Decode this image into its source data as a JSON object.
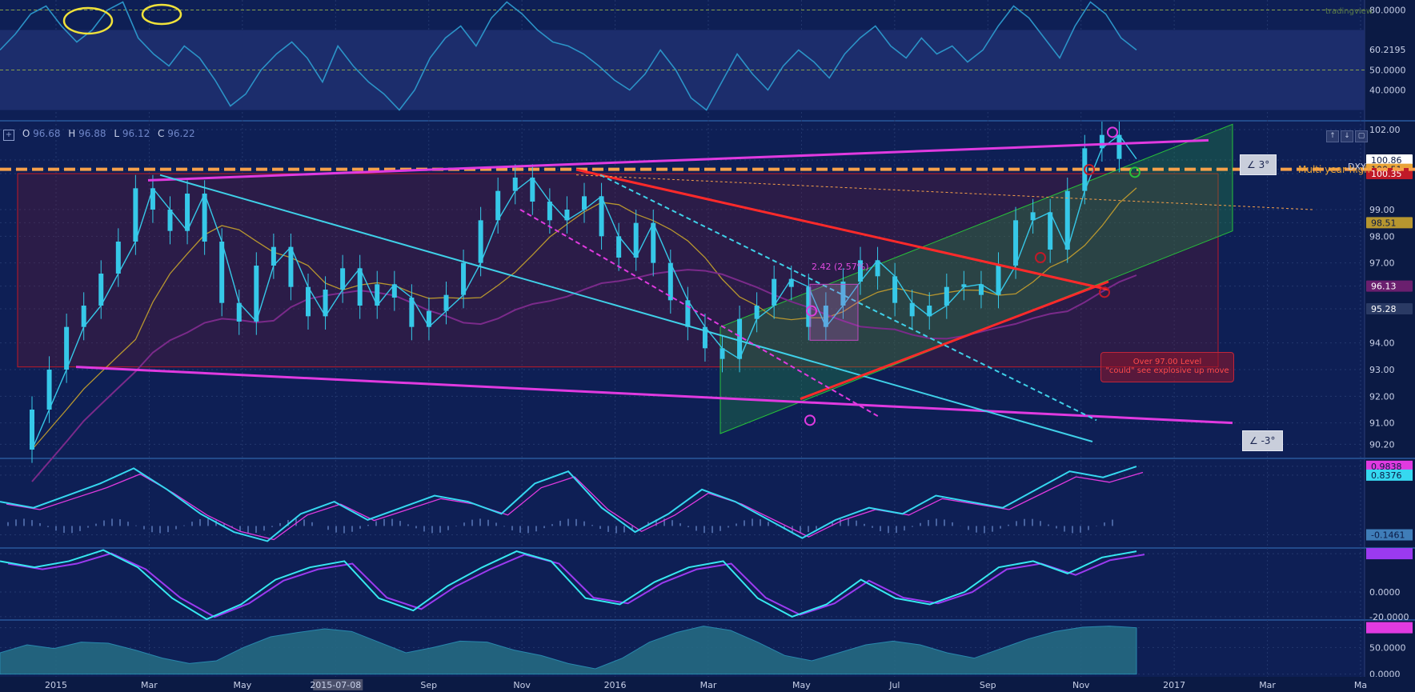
{
  "ohlc": {
    "o_label": "O",
    "o": "96.68",
    "h_label": "H",
    "h": "96.88",
    "l_label": "L",
    "l": "96.12",
    "c_label": "C",
    "c": "96.22"
  },
  "brand": "tradingview",
  "annotations": {
    "multi_year": "Multi year high",
    "note_line1": "Over 97.00 Level",
    "note_line2": "\"could\" see explosive up move",
    "measure": "2.42 (2.57%)",
    "angle_up": "∠ 3°",
    "angle_down": "∠ -3°",
    "symbol": "DXY"
  },
  "chart_data": [
    {
      "type": "line",
      "title": "RSI",
      "ylim": [
        25,
        85
      ],
      "tick_labels": [
        "80.0000",
        "60.2195",
        "50.0000",
        "40.0000"
      ],
      "tick_values": [
        80,
        60.2195,
        50,
        40
      ],
      "current": "60.2195",
      "levels": [
        80,
        70,
        50,
        30
      ],
      "series": [
        {
          "values": [
            60,
            68,
            78,
            82,
            72,
            64,
            70,
            80,
            84,
            66,
            58,
            52,
            62,
            56,
            45,
            32,
            38,
            50,
            58,
            64,
            56,
            44,
            62,
            52,
            44,
            38,
            30,
            40,
            56,
            66,
            72,
            62,
            76,
            84,
            78,
            70,
            64,
            62,
            58,
            52,
            45,
            40,
            48,
            60,
            50,
            36,
            30,
            44,
            58,
            48,
            40,
            52,
            60,
            54,
            46,
            58,
            66,
            72,
            62,
            56,
            66,
            58,
            62,
            54,
            60,
            72,
            82,
            76,
            66,
            56,
            72,
            84,
            78,
            66,
            60
          ]
        }
      ],
      "colors": {
        "line": "#2b93c7",
        "band": "#1c2d6c"
      }
    },
    {
      "type": "line",
      "title": "DXY",
      "ylim": [
        89.7,
        102.3
      ],
      "tick_labels": [
        "102.00",
        "100.86",
        "100.51",
        "100.35",
        "99.00",
        "98.51",
        "98.00",
        "97.00",
        "96.13",
        "95.28",
        "94.00",
        "93.00",
        "92.00",
        "91.00",
        "90.20"
      ],
      "tick_values": [
        102,
        100.86,
        100.51,
        100.35,
        99,
        98.51,
        98,
        97,
        96.13,
        95.28,
        94,
        93,
        92,
        91,
        90.2
      ],
      "highlight_labels": [
        {
          "value": 100.86,
          "text": "100.86",
          "color": "#ffffff",
          "text_color": "#0b1a44"
        },
        {
          "value": 100.51,
          "text": "100.51",
          "color": "#e9a436",
          "text_color": "#0b1a44"
        },
        {
          "value": 100.35,
          "text": "100.35",
          "color": "#c01a28",
          "text_color": "#ffffff"
        },
        {
          "value": 98.51,
          "text": "98.51",
          "color": "#b7962f",
          "text_color": "#0b1a44"
        },
        {
          "value": 96.13,
          "text": "96.13",
          "color": "#6a1f6e",
          "text_color": "#ffffff"
        },
        {
          "value": 95.28,
          "text": "95.28",
          "color": "#2a3a64",
          "text_color": "#ffffff"
        }
      ],
      "x_labels": [
        "2015",
        "Mar",
        "May",
        "2015-07-08",
        "Sep",
        "Nov",
        "2016",
        "Mar",
        "May",
        "Jul",
        "Sep",
        "Nov",
        "2017",
        "Mar",
        "Ma"
      ],
      "series": [
        {
          "name": "DXY",
          "values": [
            90.0,
            91.5,
            93.0,
            94.6,
            95.4,
            96.6,
            97.8,
            99.8,
            99.0,
            98.2,
            99.6,
            97.8,
            95.5,
            94.8,
            96.9,
            97.6,
            96.1,
            95.0,
            96.0,
            96.8,
            95.4,
            96.2,
            95.7,
            94.6,
            95.2,
            95.8,
            97.0,
            98.6,
            99.7,
            100.2,
            99.3,
            98.6,
            99.0,
            99.5,
            98.0,
            97.2,
            98.5,
            97.0,
            95.6,
            94.6,
            93.8,
            93.4,
            94.9,
            95.4,
            96.4,
            96.1,
            94.6,
            95.4,
            96.3,
            97.1,
            96.5,
            95.5,
            95.0,
            95.4,
            96.1,
            96.2,
            95.8,
            96.9,
            98.6,
            98.9,
            97.5,
            99.7,
            101.3,
            101.8,
            100.9
          ]
        }
      ],
      "colors": {
        "price": "#36c8e8",
        "ma_short": "#c01a28",
        "ma_mid": "#b7962f",
        "ma_long": "#7a2a8a",
        "trend_magenta": "#e03ae0",
        "trend_cyan": "#3fd0e8",
        "trend_red": "#ff2a2a",
        "channel": "#28c23a",
        "dash_orange": "#f7a14a"
      }
    },
    {
      "type": "line",
      "title": "MACD",
      "ylim": [
        -0.35,
        1.1
      ],
      "tick_labels": [
        "0.9838",
        "0.8376",
        "-0.1461"
      ],
      "tick_values": [
        0.9838,
        0.8376,
        -0.1461
      ],
      "series": [
        {
          "name": "MACD",
          "values": [
            0.4,
            0.3,
            0.5,
            0.7,
            0.95,
            0.6,
            0.2,
            -0.1,
            -0.25,
            0.2,
            0.4,
            0.1,
            0.3,
            0.5,
            0.4,
            0.2,
            0.7,
            0.9,
            0.3,
            -0.1,
            0.2,
            0.6,
            0.4,
            0.1,
            -0.2,
            0.1,
            0.3,
            0.2,
            0.5,
            0.4,
            0.3,
            0.6,
            0.9,
            0.8,
            0.98
          ]
        }
      ],
      "colors": {
        "macd": "#36d8f0",
        "signal": "#e03ae0",
        "hist": "#5a78b8"
      }
    },
    {
      "type": "line",
      "title": "Stoch",
      "ylim": [
        -22,
        35
      ],
      "tick_labels": [
        "33.0297",
        "31.0610",
        "0.0000",
        "-20.0000"
      ],
      "tick_values": [
        33.0297,
        31.061,
        0,
        -20
      ],
      "series": [
        {
          "name": "K",
          "values": [
            25,
            20,
            25,
            34,
            20,
            -5,
            -22,
            -10,
            10,
            20,
            25,
            -5,
            -15,
            5,
            20,
            33,
            25,
            -5,
            -10,
            8,
            20,
            25,
            -5,
            -20,
            -10,
            10,
            -5,
            -10,
            0,
            20,
            25,
            15,
            28,
            33
          ]
        }
      ],
      "colors": {
        "k": "#36e8f0",
        "d": "#9b3af0"
      }
    },
    {
      "type": "area",
      "title": "Volume Osc",
      "ylim": [
        -5,
        100
      ],
      "tick_labels": [
        "87.0801",
        "50.0000",
        "0.0000"
      ],
      "tick_values": [
        87.0801,
        50,
        0
      ],
      "series": [
        {
          "name": "osc",
          "values": [
            40,
            55,
            48,
            60,
            58,
            45,
            30,
            20,
            25,
            50,
            70,
            78,
            85,
            80,
            60,
            40,
            50,
            62,
            60,
            45,
            35,
            20,
            10,
            30,
            60,
            78,
            90,
            82,
            60,
            35,
            25,
            40,
            55,
            62,
            55,
            40,
            30,
            48,
            66,
            80,
            88,
            90,
            87
          ]
        }
      ],
      "colors": {
        "fill": "#256a82",
        "line": "#2b93b7"
      }
    }
  ]
}
